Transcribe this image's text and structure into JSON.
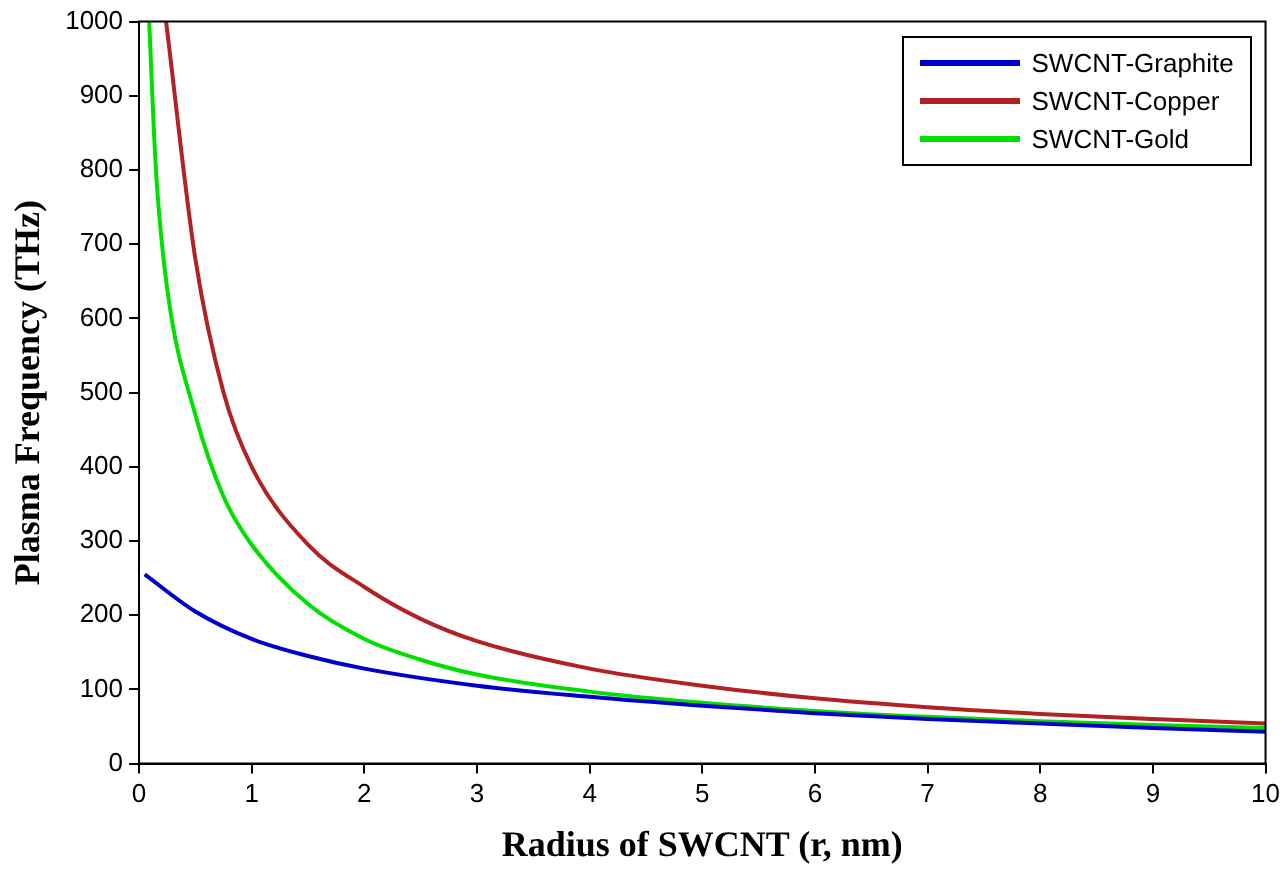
{
  "chart_data": {
    "type": "line",
    "xlabel": "Radius of SWCNT (r, nm)",
    "ylabel": "Plasma Frequency (THz)",
    "xlim": [
      0,
      10
    ],
    "xticks": [
      0,
      1,
      2,
      3,
      4,
      5,
      6,
      7,
      8,
      9,
      10
    ],
    "ylim": [
      0,
      1000
    ],
    "yticks": [
      0,
      100,
      200,
      300,
      400,
      500,
      600,
      700,
      800,
      900,
      1000
    ],
    "grid": false,
    "legend": "top right",
    "marker": "none",
    "line_style": "solid",
    "series": [
      {
        "name": "SWCNT-Graphite",
        "color": "#0000cc",
        "x": [
          0.05,
          0.5,
          1,
          1.5,
          2,
          3,
          4,
          5,
          6,
          7,
          8,
          9,
          10
        ],
        "values": [
          255,
          205,
          168,
          145,
          128,
          105,
          90,
          78,
          68,
          60,
          54,
          48,
          43
        ]
      },
      {
        "name": "SWCNT-Copper",
        "color": "#b22222",
        "x": [
          0.24,
          0.5,
          0.75,
          1,
          1.5,
          2,
          2.5,
          3,
          4,
          5,
          6,
          7,
          8,
          9,
          10
        ],
        "values": [
          1000,
          680,
          500,
          400,
          295,
          238,
          195,
          165,
          128,
          105,
          88,
          76,
          67,
          60,
          54
        ]
      },
      {
        "name": "SWCNT-Gold",
        "color": "#00e000",
        "x": [
          0.09,
          0.15,
          0.25,
          0.5,
          0.75,
          1,
          1.5,
          2,
          2.5,
          3,
          4,
          5,
          6,
          7,
          8,
          9,
          10
        ],
        "values": [
          1000,
          800,
          640,
          470,
          360,
          295,
          215,
          168,
          140,
          120,
          97,
          82,
          71,
          63,
          57,
          52,
          48
        ]
      }
    ]
  }
}
